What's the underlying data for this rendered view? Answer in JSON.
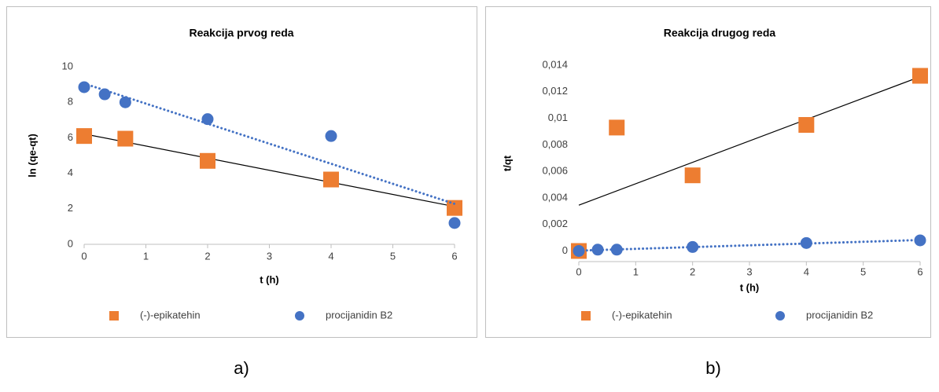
{
  "chart_data": [
    {
      "type": "scatter",
      "title": "Reakcija prvog reda",
      "xlabel": "t (h)",
      "ylabel": "ln (qe-qt)",
      "caption": "a)",
      "xlim": [
        0,
        6
      ],
      "xticks": [
        0,
        1,
        2,
        3,
        4,
        5,
        6
      ],
      "ylim": [
        0,
        10
      ],
      "yticks": [
        0,
        2,
        4,
        6,
        8,
        10
      ],
      "grid": false,
      "legend": "bottom",
      "series": [
        {
          "name": "(-)-epikatehin",
          "color": "#ED7D31",
          "marker": "square",
          "trendline": "linear",
          "trendline_style": "solid",
          "trendline_color": "#000000",
          "x": [
            0,
            0.667,
            2,
            4,
            6
          ],
          "values": [
            6.1,
            5.95,
            4.7,
            3.65,
            2.05
          ]
        },
        {
          "name": "procijanidin B2",
          "color": "#4472C4",
          "marker": "circle",
          "trendline": "linear",
          "trendline_style": "dotted",
          "trendline_color": "#4472C4",
          "x": [
            0,
            0.333,
            0.667,
            2,
            4,
            6
          ],
          "values": [
            8.85,
            8.45,
            8.0,
            7.05,
            6.1,
            1.2
          ]
        }
      ]
    },
    {
      "type": "scatter",
      "title": "Reakcija drugog reda",
      "xlabel": "t (h)",
      "ylabel": "t/qt",
      "caption": "b)",
      "xlim": [
        0,
        6
      ],
      "xticks": [
        0,
        1,
        2,
        3,
        4,
        5,
        6
      ],
      "ylim": [
        -0.0008,
        0.014
      ],
      "yticks": [
        0,
        {
          "value": 0.002,
          "label": "0,002"
        },
        {
          "value": 0.004,
          "label": "0,004"
        },
        {
          "value": 0.006,
          "label": "0,006"
        },
        {
          "value": 0.008,
          "label": "0,008"
        },
        {
          "value": 0.01,
          "label": "0,01"
        },
        {
          "value": 0.012,
          "label": "0,012"
        },
        {
          "value": 0.014,
          "label": "0,014"
        }
      ],
      "grid": false,
      "legend": "bottom",
      "series": [
        {
          "name": "(-)-epikatehin",
          "color": "#ED7D31",
          "marker": "square",
          "trendline": "linear",
          "trendline_style": "solid",
          "trendline_color": "#000000",
          "x": [
            0,
            0.667,
            2,
            4,
            6
          ],
          "values": [
            0,
            0.0093,
            0.0057,
            0.0095,
            0.0132
          ]
        },
        {
          "name": "procijanidin B2",
          "color": "#4472C4",
          "marker": "circle",
          "trendline": "linear",
          "trendline_style": "dotted",
          "trendline_color": "#4472C4",
          "x": [
            0,
            0.333,
            0.667,
            2,
            4,
            6
          ],
          "values": [
            0,
            0.0001,
            0.0001,
            0.0003,
            0.0006,
            0.0008
          ]
        }
      ]
    }
  ]
}
